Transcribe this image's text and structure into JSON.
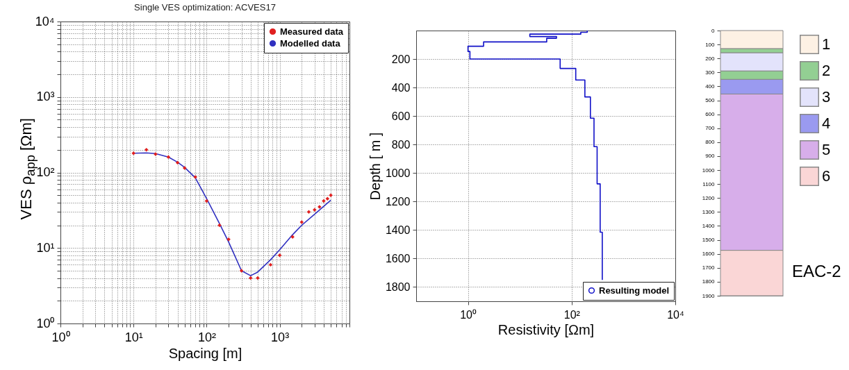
{
  "chart_data": [
    {
      "type": "line",
      "title": "Single VES optimization: ACVES17",
      "xlabel": "Spacing [m]",
      "ylabel": "VES ρ$_{app}$ [Ωm]",
      "log": "xy",
      "grid": true,
      "legend": "top right",
      "xlim": [
        1,
        9000
      ],
      "ylim": [
        1,
        10000
      ],
      "xticks": [
        {
          "value": 1,
          "label": "10⁰"
        },
        {
          "value": 2,
          "label": null
        },
        {
          "value": 3,
          "label": null
        },
        {
          "value": 4,
          "label": null
        },
        {
          "value": 5,
          "label": null
        },
        {
          "value": 6,
          "label": null
        },
        {
          "value": 7,
          "label": null
        },
        {
          "value": 8,
          "label": null
        },
        {
          "value": 9,
          "label": null
        },
        {
          "value": 10,
          "label": "10¹"
        },
        {
          "value": 20,
          "label": null
        },
        {
          "value": 30,
          "label": null
        },
        {
          "value": 40,
          "label": null
        },
        {
          "value": 50,
          "label": null
        },
        {
          "value": 60,
          "label": null
        },
        {
          "value": 70,
          "label": null
        },
        {
          "value": 80,
          "label": null
        },
        {
          "value": 90,
          "label": null
        },
        {
          "value": 100,
          "label": "10²"
        },
        {
          "value": 200,
          "label": null
        },
        {
          "value": 300,
          "label": null
        },
        {
          "value": 400,
          "label": null
        },
        {
          "value": 500,
          "label": null
        },
        {
          "value": 600,
          "label": null
        },
        {
          "value": 700,
          "label": null
        },
        {
          "value": 800,
          "label": null
        },
        {
          "value": 900,
          "label": null
        },
        {
          "value": 1000,
          "label": "10³"
        },
        {
          "value": 2000,
          "label": null
        },
        {
          "value": 3000,
          "label": null
        },
        {
          "value": 4000,
          "label": null
        },
        {
          "value": 5000,
          "label": null
        },
        {
          "value": 6000,
          "label": null
        },
        {
          "value": 7000,
          "label": null
        },
        {
          "value": 8000,
          "label": null
        },
        {
          "value": 9000,
          "label": null
        }
      ],
      "yticks": [
        {
          "value": 1,
          "label": "10⁰"
        },
        {
          "value": 2,
          "label": null
        },
        {
          "value": 3,
          "label": null
        },
        {
          "value": 4,
          "label": null
        },
        {
          "value": 5,
          "label": null
        },
        {
          "value": 6,
          "label": null
        },
        {
          "value": 7,
          "label": null
        },
        {
          "value": 8,
          "label": null
        },
        {
          "value": 9,
          "label": null
        },
        {
          "value": 10,
          "label": "10¹"
        },
        {
          "value": 20,
          "label": null
        },
        {
          "value": 30,
          "label": null
        },
        {
          "value": 40,
          "label": null
        },
        {
          "value": 50,
          "label": null
        },
        {
          "value": 60,
          "label": null
        },
        {
          "value": 70,
          "label": null
        },
        {
          "value": 80,
          "label": null
        },
        {
          "value": 90,
          "label": null
        },
        {
          "value": 100,
          "label": "10²"
        },
        {
          "value": 200,
          "label": null
        },
        {
          "value": 300,
          "label": null
        },
        {
          "value": 400,
          "label": null
        },
        {
          "value": 500,
          "label": null
        },
        {
          "value": 600,
          "label": null
        },
        {
          "value": 700,
          "label": null
        },
        {
          "value": 800,
          "label": null
        },
        {
          "value": 900,
          "label": null
        },
        {
          "value": 1000,
          "label": "10³"
        },
        {
          "value": 2000,
          "label": null
        },
        {
          "value": 3000,
          "label": null
        },
        {
          "value": 4000,
          "label": null
        },
        {
          "value": 5000,
          "label": null
        },
        {
          "value": 6000,
          "label": null
        },
        {
          "value": 7000,
          "label": null
        },
        {
          "value": 8000,
          "label": null
        },
        {
          "value": 9000,
          "label": null
        },
        {
          "value": 10000,
          "label": "10⁴"
        }
      ],
      "series": [
        {
          "name": "Measured data",
          "type": "scatter",
          "marker": "diamond",
          "color": "#e02020",
          "x": [
            10,
            15,
            20,
            30,
            40,
            50,
            70,
            100,
            150,
            200,
            300,
            400,
            500,
            750,
            1000,
            1500,
            2000,
            2500,
            3000,
            3500,
            4000,
            4500,
            5000
          ],
          "values": [
            180,
            200,
            175,
            160,
            135,
            115,
            87,
            42,
            20,
            13,
            5,
            4,
            4,
            6,
            8,
            14,
            22,
            30,
            32,
            35,
            42,
            45,
            50
          ]
        },
        {
          "name": "Modelled data",
          "type": "line",
          "color": "#3030c0",
          "x": [
            10,
            15,
            20,
            30,
            40,
            50,
            70,
            100,
            150,
            200,
            300,
            400,
            500,
            750,
            1000,
            1500,
            2000,
            3000,
            5000
          ],
          "values": [
            180,
            182,
            178,
            160,
            137,
            117,
            85,
            45,
            21,
            12,
            5,
            4.3,
            4.8,
            7,
            9.5,
            15,
            20,
            28,
            43
          ]
        }
      ]
    },
    {
      "type": "line",
      "xlabel": "Resistivity  [Ωm]",
      "ylabel": "Depth [ m ]",
      "log": "x",
      "grid": true,
      "legend": "bottom right",
      "xlim": [
        0.1,
        10000
      ],
      "ylim": [
        1900,
        0
      ],
      "xticks": [
        {
          "value": 1,
          "label": "10⁰"
        },
        {
          "value": 100,
          "label": "10²"
        },
        {
          "value": 10000,
          "label": "10⁴"
        }
      ],
      "yticks": [
        200,
        400,
        600,
        800,
        1000,
        1200,
        1400,
        1600,
        1800
      ],
      "series": [
        {
          "name": "Resulting model",
          "color": "#1010c8",
          "x": [
            200,
            200,
            150,
            150,
            15.6,
            15.6,
            51,
            51,
            33,
            33,
            2,
            2,
            1,
            1,
            1.09,
            1.09,
            60,
            60,
            120,
            120,
            180,
            180,
            230,
            230,
            270,
            270,
            310,
            310,
            355,
            355,
            390,
            390
          ],
          "values": [
            0,
            12,
            12,
            25,
            25,
            42,
            42,
            54,
            54,
            80,
            80,
            110,
            110,
            147,
            147,
            200,
            200,
            266,
            266,
            347,
            347,
            466,
            466,
            615,
            615,
            815,
            815,
            1076,
            1076,
            1415,
            1415,
            1750
          ]
        }
      ]
    },
    {
      "type": "bar",
      "stacked": true,
      "legend": "right",
      "categories": [
        null
      ],
      "ylim": [
        1900,
        0
      ],
      "yticks": [
        0,
        100,
        200,
        300,
        400,
        500,
        600,
        700,
        800,
        900,
        1000,
        1100,
        1200,
        1300,
        1400,
        1500,
        1600,
        1700,
        1800,
        1900
      ],
      "annotations": [
        "EAC-2"
      ],
      "series": [
        {
          "name": "1",
          "color": "#fdf1e4",
          "values": [
            130
          ]
        },
        {
          "name": "2",
          "color": "#93cf93",
          "values": [
            30
          ]
        },
        {
          "name": "3",
          "color": "#e3e3fb",
          "values": [
            130
          ]
        },
        {
          "color": "#93cf93",
          "values": [
            60
          ]
        },
        {
          "name": "4",
          "color": "#9a9af0",
          "values": [
            105
          ]
        },
        {
          "name": "5",
          "color": "#d7aeea",
          "values": [
            1120
          ]
        },
        {
          "name": "6",
          "color": "#fad6d6",
          "values": [
            325
          ]
        }
      ]
    }
  ]
}
